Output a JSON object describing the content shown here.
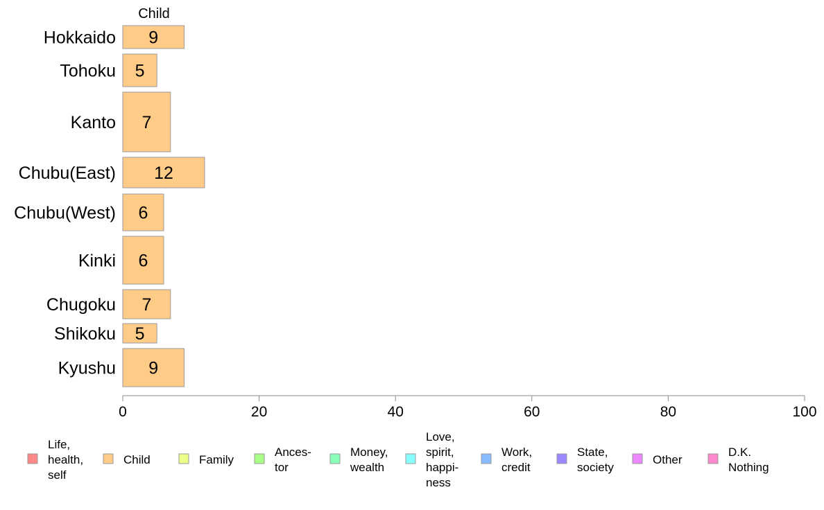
{
  "chart_data": {
    "type": "bar",
    "orientation": "horizontal",
    "stacked": true,
    "column_header": "Child",
    "categories": [
      "Hokkaido",
      "Tohoku",
      "Kanto",
      "Chubu(East)",
      "Chubu(West)",
      "Kinki",
      "Chugoku",
      "Shikoku",
      "Kyushu"
    ],
    "series": [
      {
        "name": "Child",
        "values": [
          9,
          5,
          7,
          12,
          6,
          6,
          7,
          5,
          9
        ],
        "labels": [
          "9",
          "5",
          "7",
          "12",
          "6",
          "6",
          "7",
          "5",
          "9"
        ],
        "color": "#FFCC88"
      }
    ],
    "xlim": [
      0,
      100
    ],
    "xticks": [
      "0",
      "20",
      "40",
      "60",
      "80",
      "100"
    ],
    "grid": false,
    "legend_position": "bottom",
    "legend": [
      {
        "lines": [
          "Life,",
          "health,",
          "self"
        ],
        "color": "#FF8888"
      },
      {
        "lines": [
          "Child"
        ],
        "color": "#FFCC88"
      },
      {
        "lines": [
          "Family"
        ],
        "color": "#EEFF88"
      },
      {
        "lines": [
          "Ances-",
          "tor"
        ],
        "color": "#AAFF88"
      },
      {
        "lines": [
          "Money,",
          "wealth"
        ],
        "color": "#88FFBB"
      },
      {
        "lines": [
          "Love,",
          "spirit,",
          "happi-",
          "ness"
        ],
        "color": "#88FFFF"
      },
      {
        "lines": [
          "Work,",
          "credit"
        ],
        "color": "#88BBFF"
      },
      {
        "lines": [
          "State,",
          "society"
        ],
        "color": "#9988FF"
      },
      {
        "lines": [
          "Other"
        ],
        "color": "#EE88FF"
      },
      {
        "lines": [
          "D.K.",
          "Nothing"
        ],
        "color": "#FF88CC"
      }
    ]
  }
}
